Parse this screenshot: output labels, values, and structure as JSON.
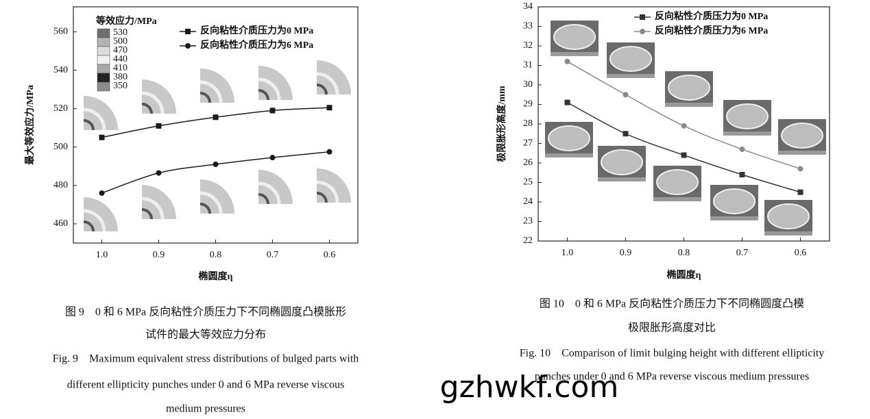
{
  "chart_data": [
    {
      "type": "line",
      "xlabel": "椭圆度η",
      "ylabel": "最大等效应力/MPa",
      "categories": [
        "1.0",
        "0.9",
        "0.8",
        "0.7",
        "0.6"
      ],
      "series": [
        {
          "name": "反向粘性介质压力为0 MPa",
          "color": "#1a1a1a",
          "marker": "square",
          "values": [
            505,
            511,
            515.5,
            519,
            520.5
          ]
        },
        {
          "name": "反向粘性介质压力为6 MPa",
          "color": "#1a1a1a",
          "marker": "circle",
          "values": [
            476,
            486.5,
            491,
            494.5,
            497.5
          ]
        }
      ],
      "ylim": [
        450,
        573
      ],
      "yticks": [
        460,
        480,
        500,
        520,
        540,
        560
      ],
      "colorbar": {
        "title": "等效应力/MPa",
        "levels": [
          530,
          500,
          470,
          440,
          410,
          380,
          350
        ],
        "colors": [
          "#6e6e6e",
          "#b5b5b5",
          "#dcdcdc",
          "#f0f0f0",
          "#a8a8a8",
          "#222222",
          "#8c8c8c"
        ]
      },
      "caption": [
        "图 9　0 和 6 MPa 反向粘性介质压力下不同椭圆度凸模胀形",
        "试件的最大等效应力分布",
        "Fig. 9　Maximum equivalent stress distributions of bulged parts with",
        "different ellipticity punches under 0 and 6 MPa reverse viscous",
        "medium pressures"
      ]
    },
    {
      "type": "line",
      "xlabel": "椭圆度η",
      "ylabel": "极限胀形高度/mm",
      "categories": [
        "1.0",
        "0.9",
        "0.8",
        "0.7",
        "0.6"
      ],
      "series": [
        {
          "name": "反向粘性介质压力为0 MPa",
          "color": "#333333",
          "marker": "square",
          "values": [
            29.1,
            27.5,
            26.4,
            25.4,
            24.5
          ]
        },
        {
          "name": "反向粘性介质压力为6 MPa",
          "color": "#8a8a8a",
          "marker": "circle",
          "values": [
            31.2,
            29.5,
            27.9,
            26.7,
            25.7
          ]
        }
      ],
      "ylim": [
        22,
        34
      ],
      "yticks": [
        22,
        23,
        24,
        25,
        26,
        27,
        28,
        29,
        30,
        31,
        32,
        33,
        34
      ],
      "caption": [
        "图 10　0 和 6 MPa 反向粘性介质压力下不同椭圆度凸模",
        "极限胀形高度对比",
        "Fig. 10　Comparison of limit bulging height with different ellipticity",
        "punches under 0 and 6 MPa reverse viscous medium pressures"
      ]
    }
  ],
  "watermark": "gzhwkf.com"
}
